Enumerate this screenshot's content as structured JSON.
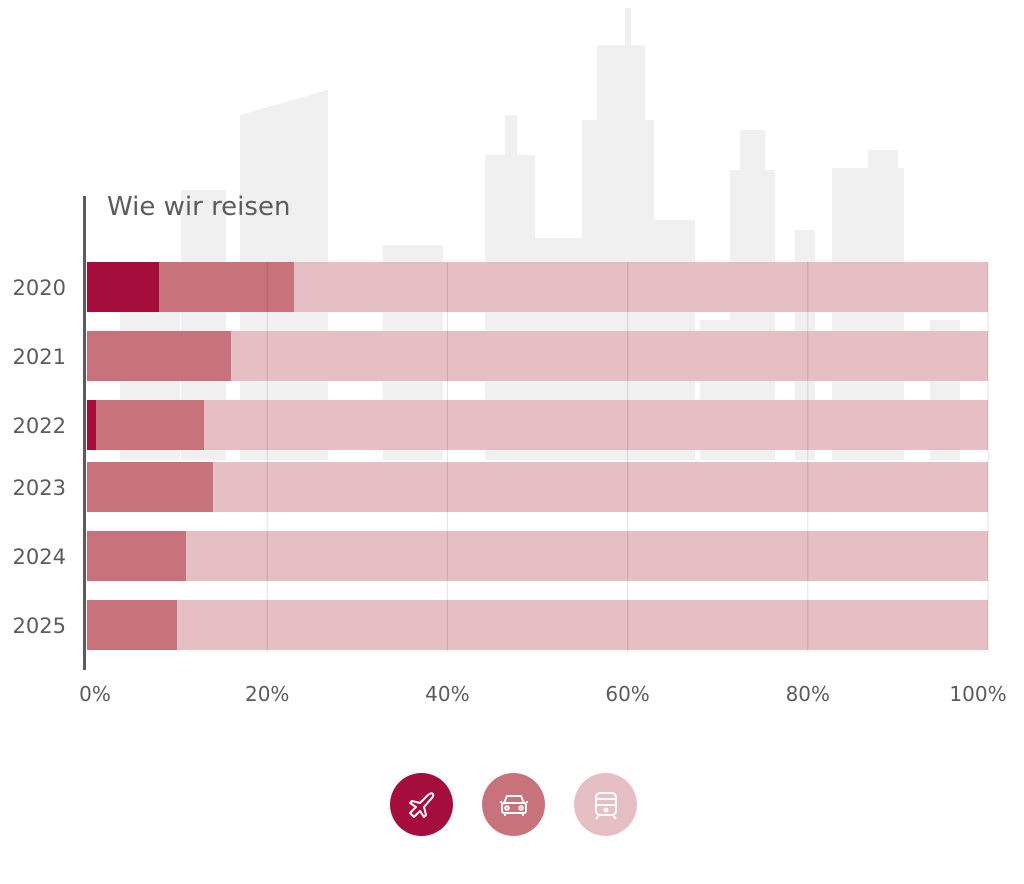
{
  "chart_data": {
    "type": "bar",
    "orientation": "horizontal",
    "stacked": true,
    "normalized": true,
    "title": "Wie wir reisen",
    "categories": [
      "2020",
      "2021",
      "2022",
      "2023",
      "2024",
      "2025"
    ],
    "series": [
      {
        "icon": "plane-icon",
        "color": "#a50d3d",
        "values": [
          8,
          0,
          1,
          0,
          0,
          0
        ]
      },
      {
        "icon": "car-icon",
        "color": "#c8727c",
        "values": [
          15,
          16,
          12,
          14,
          11,
          10
        ]
      },
      {
        "icon": "train-icon",
        "color": "#e5bfc3",
        "values": [
          77,
          84,
          87,
          86,
          89,
          90
        ]
      }
    ],
    "xlim": [
      0,
      100
    ],
    "xticks": [
      "0%",
      "20%",
      "40%",
      "60%",
      "80%",
      "100%"
    ],
    "grid": true,
    "legend": "bottom-center"
  }
}
